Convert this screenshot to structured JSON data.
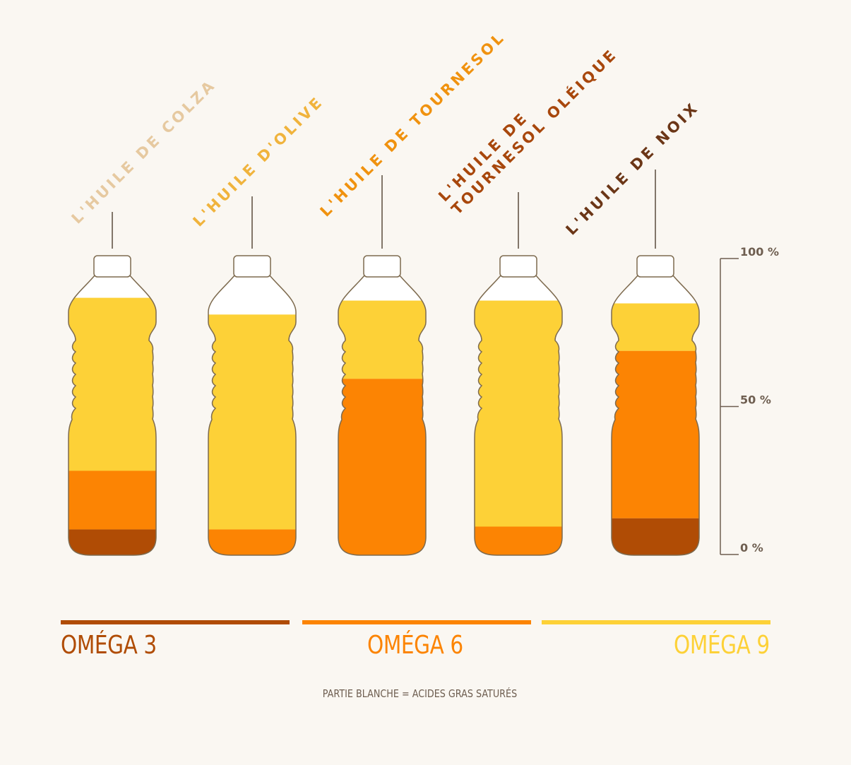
{
  "colors": {
    "background": "#faf7f2",
    "omega3": "#b04c05",
    "omega6": "#fc8403",
    "omega9": "#fdd137",
    "saturated": "#ffffff",
    "outline": "#7d6a4e",
    "axis": "#6e5e50"
  },
  "legend": {
    "items": [
      {
        "label": "OMÉGA 3",
        "color": "#b04c05"
      },
      {
        "label": "OMÉGA 6",
        "color": "#fc8403"
      },
      {
        "label": "OMÉGA 9",
        "color": "#fdd137"
      }
    ],
    "note": "PARTIE BLANCHE = ACIDES GRAS SATURÉS"
  },
  "chart_data": {
    "type": "bar",
    "stacked": true,
    "categories": [
      "L'HUILE DE COLZA",
      "L'HUILE D'OLIVE",
      "L'HUILE DE TOURNESOL",
      "L'HUILE DE TOURNESOL OLÉIQUE",
      "L'HUILE DE NOIX"
    ],
    "category_lines": [
      [
        "L'HUILE DE COLZA"
      ],
      [
        "L'HUILE D'OLIVE"
      ],
      [
        "L'HUILE DE TOURNESOL"
      ],
      [
        "L'HUILE DE",
        "TOURNESOL OLÉIQUE"
      ],
      [
        "L'HUILE DE NOIX"
      ]
    ],
    "label_colors": [
      "#e6c9a0",
      "#f0b33c",
      "#f0920f",
      "#a8470c",
      "#6b3617"
    ],
    "series": [
      {
        "name": "OMÉGA 3",
        "values": [
          9,
          0,
          0,
          0,
          13
        ]
      },
      {
        "name": "OMÉGA 6",
        "values": [
          21,
          9,
          63,
          10,
          60
        ]
      },
      {
        "name": "OMÉGA 9",
        "values": [
          62,
          77,
          28,
          81,
          17
        ]
      }
    ],
    "ylim": [
      0,
      100
    ],
    "yticks": [
      "0 %",
      "50 %",
      "100 %"
    ],
    "ytick_values": [
      0,
      50,
      100
    ]
  }
}
